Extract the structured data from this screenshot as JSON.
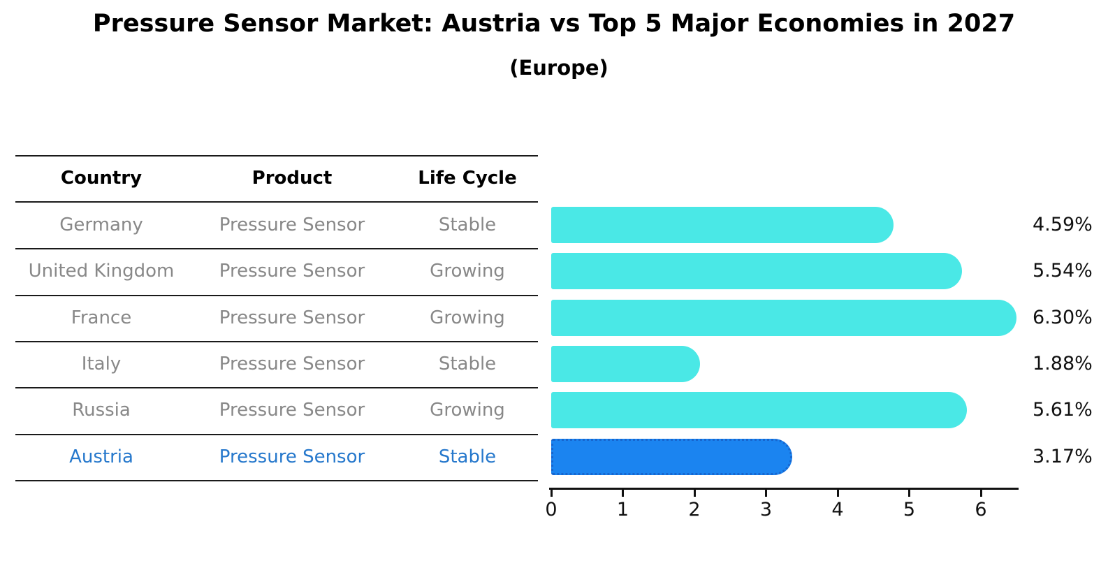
{
  "title": "Pressure Sensor Market: Austria vs Top 5 Major Economies in 2027",
  "subtitle": "(Europe)",
  "table": {
    "headers": [
      "Country",
      "Product",
      "Life Cycle"
    ],
    "rows": [
      {
        "country": "Germany",
        "product": "Pressure Sensor",
        "life_cycle": "Stable",
        "highlight": false
      },
      {
        "country": "United Kingdom",
        "product": "Pressure Sensor",
        "life_cycle": "Growing",
        "highlight": false
      },
      {
        "country": "France",
        "product": "Pressure Sensor",
        "life_cycle": "Growing",
        "highlight": false
      },
      {
        "country": "Italy",
        "product": "Pressure Sensor",
        "life_cycle": "Stable",
        "highlight": false
      },
      {
        "country": "Russia",
        "product": "Pressure Sensor",
        "life_cycle": "Growing",
        "highlight": false
      },
      {
        "country": "Austria",
        "product": "Pressure Sensor",
        "life_cycle": "Stable",
        "highlight": true
      }
    ]
  },
  "chart_data": {
    "type": "bar",
    "orientation": "horizontal",
    "title": "Pressure Sensor Market: Austria vs Top 5 Major Economies in 2027",
    "subtitle": "(Europe)",
    "categories": [
      "Germany",
      "United Kingdom",
      "France",
      "Italy",
      "Russia",
      "Austria"
    ],
    "values": [
      4.59,
      5.54,
      6.3,
      1.88,
      5.61,
      3.17
    ],
    "value_labels": [
      "4.59%",
      "5.54%",
      "6.30%",
      "1.88%",
      "5.61%",
      "3.17%"
    ],
    "highlight_category": "Austria",
    "xlabel": "",
    "ylabel": "",
    "xticks": [
      0,
      1,
      2,
      3,
      4,
      5,
      6
    ],
    "xlim": [
      0,
      6.5
    ],
    "grid": false,
    "legend": "none",
    "colors": {
      "bar": "#4AE8E6",
      "highlight_bar": "#1B84F0",
      "highlight_bar_border": "#1766CF",
      "highlight_text": "#2678CC",
      "row_text": "#888888",
      "header_text": "#000000",
      "axis_text": "#111111",
      "rule_line": "#1a1a1a"
    }
  }
}
